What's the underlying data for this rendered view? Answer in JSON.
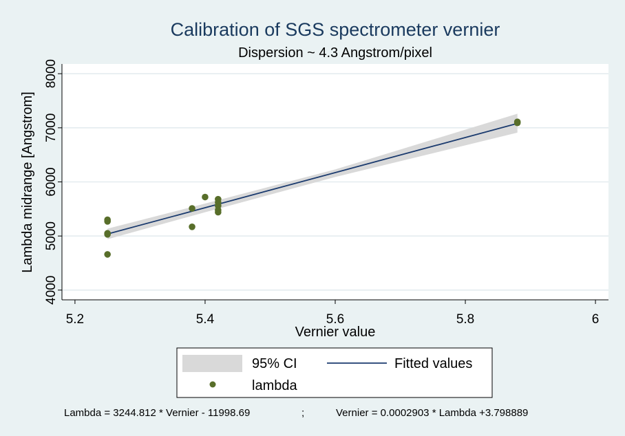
{
  "chart_data": {
    "type": "scatter",
    "title": "Calibration of SGS spectrometer vernier",
    "subtitle": "Dispersion ~ 4.3 Angstrom/pixel",
    "xlabel": "Vernier value",
    "ylabel": "Lambda midrange  [Angstrom]",
    "xlim": [
      5.18,
      6.02
    ],
    "ylim": [
      3820,
      8180
    ],
    "x_ticks": [
      5.2,
      5.4,
      5.6,
      5.8,
      6
    ],
    "x_tick_labels": [
      "5.2",
      "5.4",
      "5.6",
      "5.8",
      "6"
    ],
    "y_ticks": [
      4000,
      5000,
      6000,
      7000,
      8000
    ],
    "y_tick_labels": [
      "4000",
      "5000",
      "6000",
      "7000",
      "8000"
    ],
    "grid": "horizontal",
    "series": [
      {
        "name": "lambda",
        "type": "scatter",
        "color": "#586e2a",
        "x": [
          5.25,
          5.25,
          5.25,
          5.25,
          5.25,
          5.38,
          5.38,
          5.4,
          5.42,
          5.42,
          5.42,
          5.42,
          5.42,
          5.88,
          5.88
        ],
        "y": [
          5300,
          5270,
          5050,
          5030,
          4660,
          5510,
          5170,
          5720,
          5680,
          5620,
          5560,
          5480,
          5440,
          7110,
          7090
        ]
      },
      {
        "name": "Fitted values",
        "type": "line",
        "color": "#1a3a6e",
        "x": [
          5.25,
          5.88
        ],
        "y": [
          5036.8,
          7081.0
        ]
      },
      {
        "name": "95% CI",
        "type": "area",
        "color": "#d9d9d9",
        "x": [
          5.25,
          5.4,
          5.6,
          5.88
        ],
        "lower": [
          4940,
          5440,
          6090,
          6910
        ],
        "upper": [
          5135,
          5600,
          6230,
          7260
        ]
      }
    ],
    "legend": {
      "placement": "bottom",
      "entries": [
        "95% CI",
        "Fitted values",
        "lambda"
      ]
    }
  },
  "footnote": {
    "left": "Lambda = 3244.812 * Vernier - 11998.69",
    "separator": ";",
    "right": "Vernier = 0.0002903 * Lambda +3.798889"
  }
}
